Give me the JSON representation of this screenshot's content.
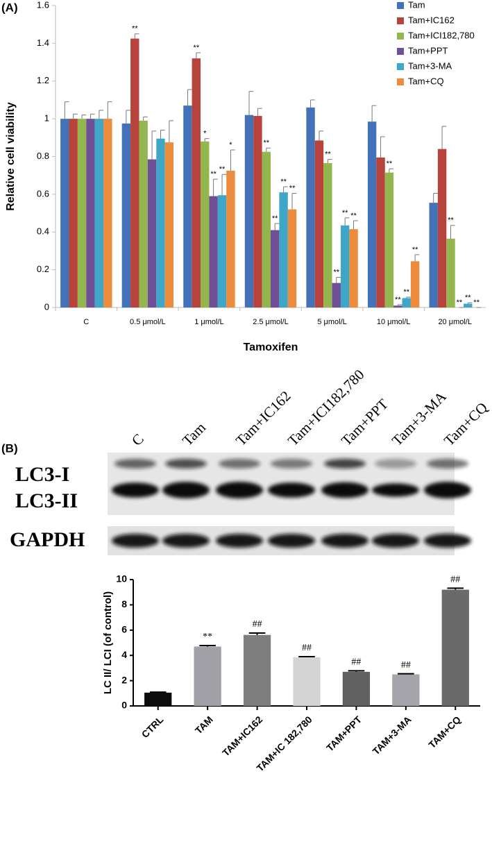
{
  "panel_labels": [
    "(A)",
    "(B)"
  ],
  "blot": {
    "lanes": [
      "C",
      "Tam",
      "Tam+IC162",
      "Tam+ICI182,780",
      "Tam+PPT",
      "Tam+3-MA",
      "Tam+CQ"
    ],
    "rows": [
      "LC3-I",
      "LC3-II",
      "GAPDH"
    ]
  },
  "chart_data": [
    {
      "type": "bar",
      "y_label": "Relative cell viability",
      "x_label": "Tamoxifen",
      "categories": [
        "C",
        "0.5 μmol/L",
        "1 μmol/L",
        "2.5 μmol/L",
        "5 μmol/L",
        "10 μmol/L",
        "20 μmol/L"
      ],
      "ylim": [
        0,
        1.6
      ],
      "yticks": [
        0,
        0.2,
        0.4,
        0.6,
        0.8,
        1,
        1.2,
        1.4,
        1.6
      ],
      "grid": false,
      "legend": "top-right",
      "series": [
        {
          "name": "Tam",
          "color": "#4372b8",
          "values": [
            1,
            0.975,
            1.07,
            1.02,
            1.06,
            0.985,
            0.555
          ],
          "errors": [
            0.09,
            0.07,
            0.085,
            0.125,
            0.04,
            0.085,
            0.05
          ],
          "annotations": [
            null,
            null,
            null,
            null,
            null,
            null,
            null
          ]
        },
        {
          "name": "Tam+IC162",
          "color": "#b8433c",
          "values": [
            1,
            1.425,
            1.32,
            1.015,
            0.885,
            0.795,
            0.84
          ],
          "errors": [
            0.025,
            0.025,
            0.03,
            0.04,
            0.05,
            0.11,
            0.12
          ],
          "annotations": [
            null,
            "**",
            "**",
            null,
            null,
            null,
            null
          ]
        },
        {
          "name": "Tam+ICI182,780",
          "color": "#94b64f",
          "values": [
            1,
            0.99,
            0.88,
            0.825,
            0.765,
            0.715,
            0.365
          ],
          "errors": [
            0.02,
            0.02,
            0.015,
            0.02,
            0.02,
            0.02,
            0.07
          ],
          "annotations": [
            null,
            null,
            "*",
            "**",
            "**",
            "**",
            "**"
          ]
        },
        {
          "name": "Tam+PPT",
          "color": "#6f4f95",
          "values": [
            1,
            0.785,
            0.59,
            0.41,
            0.13,
            0.01,
            0
          ],
          "errors": [
            0.025,
            0.15,
            0.09,
            0.035,
            0.03,
            0.005,
            0
          ],
          "annotations": [
            null,
            null,
            "**",
            "**",
            "**",
            "**",
            "**"
          ]
        },
        {
          "name": "Tam+3-MA",
          "color": "#3ea6c7",
          "values": [
            1,
            0.895,
            0.595,
            0.61,
            0.435,
            0.05,
            0.02
          ],
          "errors": [
            0.045,
            0.045,
            0.11,
            0.03,
            0.04,
            0.005,
            0.005
          ],
          "annotations": [
            null,
            null,
            "**",
            "**",
            "**",
            "**",
            "**"
          ]
        },
        {
          "name": "Tam+CQ",
          "color": "#eb8b3b",
          "values": [
            1,
            0.875,
            0.725,
            0.52,
            0.415,
            0.245,
            0
          ],
          "errors": [
            0.09,
            0.115,
            0.11,
            0.085,
            0.045,
            0.035,
            0
          ],
          "annotations": [
            null,
            null,
            "*",
            "**",
            "**",
            "**",
            "**"
          ]
        }
      ]
    },
    {
      "type": "bar",
      "y_label": "LC II/ LCI (of control)",
      "categories": [
        "CTRL",
        "TAM",
        "TAM+IC162",
        "TAM+IC 182,780",
        "TAM+PPT",
        "TAM+3-MA",
        "TAM+CQ"
      ],
      "ylim": [
        0,
        10
      ],
      "yticks": [
        0,
        2,
        4,
        6,
        8,
        10
      ],
      "values": [
        1.05,
        4.7,
        5.62,
        3.85,
        2.7,
        2.5,
        9.2
      ],
      "errors": [
        0.04,
        0.08,
        0.15,
        0.05,
        0.08,
        0.05,
        0.12
      ],
      "colors": [
        "#0d0d0d",
        "#a0a0a6",
        "#7e7e7e",
        "#d4d4d4",
        "#606060",
        "#a4a4aa",
        "#6a6a6a"
      ],
      "annotations": [
        null,
        "**",
        "##",
        "##",
        "##",
        "##",
        "##"
      ]
    }
  ]
}
